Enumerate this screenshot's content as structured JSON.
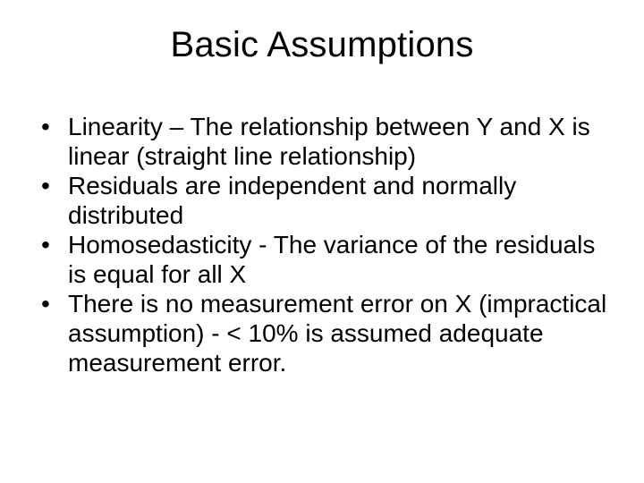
{
  "slide": {
    "title": "Basic Assumptions",
    "bullets": [
      "Linearity – The relationship between Y and X is linear (straight line relationship)",
      "Residuals are independent and normally distributed",
      "Homosedasticity - The variance of the residuals is equal for all X",
      "There is no measurement error on X (impractical assumption) - < 10% is assumed adequate measurement error."
    ],
    "colors": {
      "background": "#ffffff",
      "text": "#000000"
    },
    "typography": {
      "title_fontsize": 40,
      "body_fontsize": 28,
      "font_family": "Arial"
    }
  }
}
